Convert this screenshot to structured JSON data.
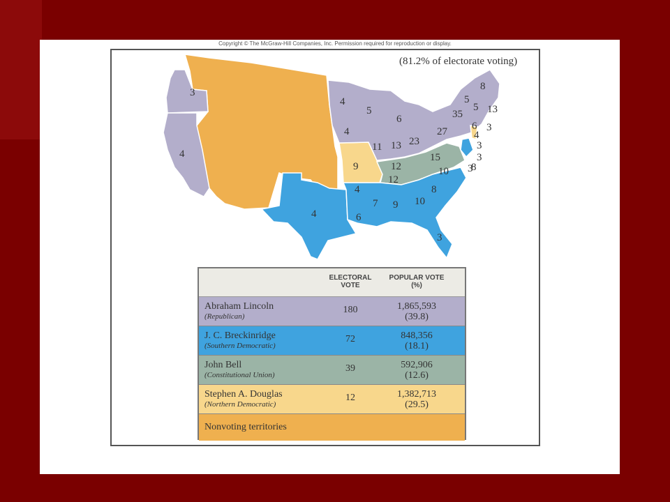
{
  "copyright": "Copyright © The McGraw-Hill Companies, Inc. Permission required for reproduction or display.",
  "voting_note": "(81.2% of electorate voting)",
  "colors": {
    "republican": "#b3aecb",
    "southern_democratic": "#3fa3df",
    "constitutional_union": "#9bb4a6",
    "northern_democratic": "#f8d78c",
    "nonvoting": "#efb04f"
  },
  "map_labels": [
    "3",
    "4",
    "4",
    "5",
    "4",
    "6",
    "11",
    "13",
    "23",
    "27",
    "35",
    "8",
    "5",
    "5",
    "13",
    "4",
    "3",
    "6",
    "3",
    "3",
    "9",
    "12",
    "15",
    "3",
    "12",
    "10",
    "8",
    "8",
    "4",
    "4",
    "6",
    "7",
    "9",
    "10",
    "3"
  ],
  "legend": {
    "header": {
      "electoral": "ELECTORAL VOTE",
      "popular": "POPULAR VOTE (%)"
    },
    "rows": [
      {
        "candidate": "Abraham Lincoln",
        "party": "(Republican)",
        "electoral": "180",
        "popular": "1,865,593",
        "percent": "(39.8)"
      },
      {
        "candidate": "J. C. Breckinridge",
        "party": "(Southern Democratic)",
        "electoral": "72",
        "popular": "848,356",
        "percent": "(18.1)"
      },
      {
        "candidate": "John Bell",
        "party": "(Constitutional Union)",
        "electoral": "39",
        "popular": "592,906",
        "percent": "(12.6)"
      },
      {
        "candidate": "Stephen A. Douglas",
        "party": "(Northern Democratic)",
        "electoral": "12",
        "popular": "1,382,713",
        "percent": "(29.5)"
      }
    ],
    "nonvoting": "Nonvoting territories"
  }
}
